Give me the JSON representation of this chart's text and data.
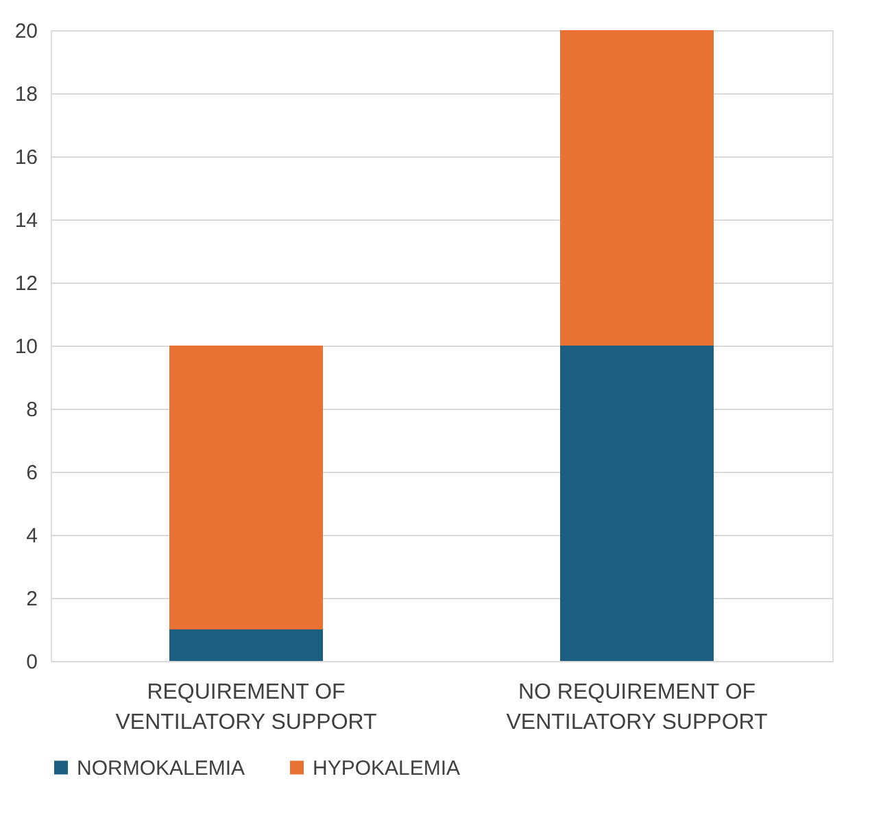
{
  "chart_data": {
    "type": "bar",
    "stacked": true,
    "categories": [
      "REQUIREMENT OF VENTILATORY SUPPORT",
      "NO REQUIREMENT OF VENTILATORY SUPPORT"
    ],
    "series": [
      {
        "name": "NORMOKALEMIA",
        "color": "#1b5e7f",
        "values": [
          1,
          10
        ]
      },
      {
        "name": "HYPOKALEMIA",
        "color": "#e97132",
        "values": [
          9,
          10
        ]
      }
    ],
    "ylim": [
      0,
      20
    ],
    "yticks": [
      0,
      2,
      4,
      6,
      8,
      10,
      12,
      14,
      16,
      18,
      20
    ],
    "grid": "y",
    "legend": "bottom"
  }
}
